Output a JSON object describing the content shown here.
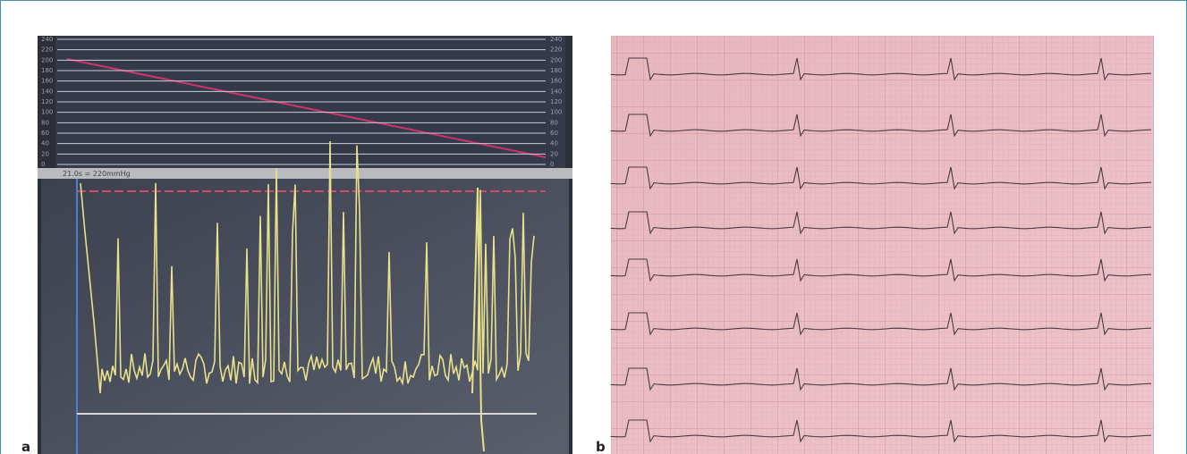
{
  "panel_a": {
    "label": "a",
    "header": "21.0s = 220mmHg",
    "scale_labels": [
      "240",
      "220",
      "200",
      "180",
      "160",
      "140",
      "120",
      "100",
      "80",
      "60",
      "40",
      "20",
      "0"
    ]
  },
  "panel_b": {
    "label": "b"
  }
}
